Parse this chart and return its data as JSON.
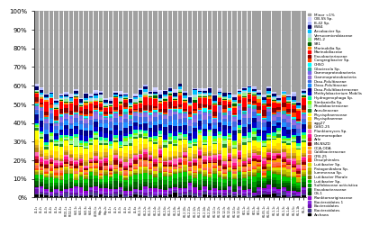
{
  "legend_labels": [
    "Minor <1%",
    "OB-SS Sp.",
    "B-42 Sp.",
    "KSB4",
    "Arcobacter Sp.",
    "Verrucomicrobiaceae",
    "RM1-2",
    "SR1",
    "Marinobilia Sp.",
    "Marinobiliaceae",
    "Flavobacteriaceae",
    "Congregibacter Sp.",
    "CHSO",
    "Glaciecola Sp.",
    "Gammaproteobacteria",
    "Gammaproteobacteria ",
    "Dasu-Polultiaceae",
    "Dasu-Polultiaceae ",
    "Dasu-Polultibacteraceae",
    "Methylobacterium Mobilis",
    "Hydrogenophaga Sp.",
    "Simkaniella Sp.",
    "Rhodobacteraceae",
    "Aneulinaceae",
    "Phycisphaeraceae",
    "Phycisphaereae",
    "agg27",
    "CdSO-25",
    "Planktomyces Sp.",
    "Gemmanopdae",
    "Arle",
    "BN-NSZD",
    "OCA-ODA",
    "Caldibacteraceae",
    "CFB-25",
    "Desulphinales",
    "Lutiibacter Sp.",
    "Patagonibakea Sp.",
    "Iummerosa Sp.",
    "Lutiibacter Morale",
    "Lutiibacter Sp. ",
    "Sulfobiaceae activistica",
    "Flavobacteraceae",
    "OS-1",
    "Planktomariginaceae",
    "Bacteroidates 1",
    "Bacteroidates",
    "Bacteroidates ",
    "Archaea"
  ],
  "legend_colors": [
    "#a0a0a0",
    "#d0d0ff",
    "#b0b8ff",
    "#000066",
    "#00bfff",
    "#add8e6",
    "#90ee90",
    "#006400",
    "#ff8c00",
    "#ff0000",
    "#8b0000",
    "#ff4500",
    "#00ffff",
    "#20b2aa",
    "#7b68ee",
    "#9370db",
    "#4169e1",
    "#1e90ff",
    "#00008b",
    "#0000cd",
    "#00fa9a",
    "#7cfc00",
    "#98fb98",
    "#228b22",
    "#ffff00",
    "#ffd700",
    "#daa520",
    "#b8860b",
    "#ff69b4",
    "#ff1493",
    "#dc143c",
    "#8b0000",
    "#ffa500",
    "#ff7f50",
    "#ff6347",
    "#ff4500",
    "#dddd00",
    "#bbbb00",
    "#999900",
    "#777700",
    "#00cc00",
    "#009900",
    "#006600",
    "#004400",
    "#9400d3",
    "#8a2be2",
    "#6a0dad",
    "#483d8b",
    "#000000"
  ],
  "n_samples": 55,
  "ylim": [
    0,
    1.0
  ],
  "yticks": [
    0.0,
    0.1,
    0.2,
    0.3,
    0.4,
    0.5,
    0.6,
    0.7,
    0.8,
    0.9,
    1.0
  ],
  "yticklabels": [
    "0%",
    "10%",
    "20%",
    "30%",
    "40%",
    "50%",
    "60%",
    "70%",
    "80%",
    "90%",
    "100%"
  ],
  "background_color": "#ffffff",
  "grid_color": "#cccccc",
  "bar_width": 0.85,
  "seed": 123
}
